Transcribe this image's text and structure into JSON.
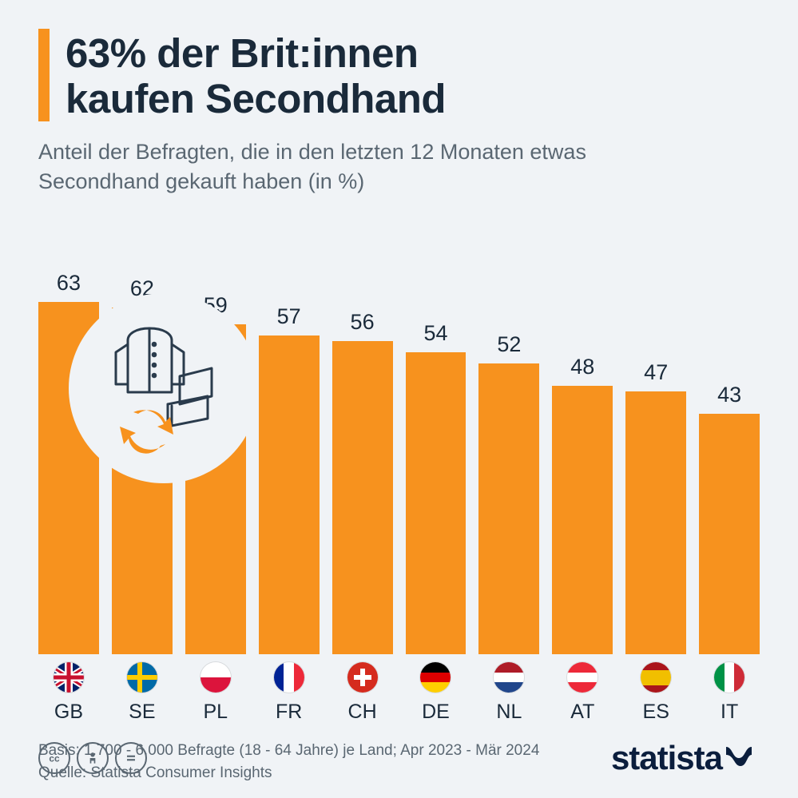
{
  "title_line1": "63% der Brit:innen",
  "title_line2": "kaufen Secondhand",
  "subtitle": "Anteil der Befragten, die in den letzten 12 Monaten etwas Secondhand gekauft haben (in %)",
  "chart": {
    "type": "bar",
    "max_value": 70,
    "bar_color": "#f7921e",
    "background_color": "#f0f3f6",
    "value_fontsize": 27,
    "label_fontsize": 25,
    "bars": [
      {
        "code": "GB",
        "value": 63,
        "flag": "gb"
      },
      {
        "code": "SE",
        "value": 62,
        "flag": "se"
      },
      {
        "code": "PL",
        "value": 59,
        "flag": "pl"
      },
      {
        "code": "FR",
        "value": 57,
        "flag": "fr"
      },
      {
        "code": "CH",
        "value": 56,
        "flag": "ch"
      },
      {
        "code": "DE",
        "value": 54,
        "flag": "de"
      },
      {
        "code": "NL",
        "value": 52,
        "flag": "nl"
      },
      {
        "code": "AT",
        "value": 48,
        "flag": "at"
      },
      {
        "code": "ES",
        "value": 47,
        "flag": "es"
      },
      {
        "code": "IT",
        "value": 43,
        "flag": "it"
      }
    ]
  },
  "footnote_basis": "Basis: 1.700 - 6.000 Befragte (18 - 64 Jahre) je Land; Apr 2023 - Mär 2024",
  "footnote_source": "Quelle: Statista Consumer Insights",
  "brand": "statista",
  "colors": {
    "accent": "#f7921e",
    "text_dark": "#1a2a3a",
    "text_muted": "#5a6772",
    "icon_line": "#2a3b4c"
  },
  "flag_colors": {
    "gb": {
      "bg": "#012169",
      "cross": "#ffffff",
      "red": "#c8102e"
    },
    "se": {
      "bg": "#006aa7",
      "cross": "#fecc00"
    },
    "pl": {
      "top": "#ffffff",
      "bottom": "#dc143c"
    },
    "fr": {
      "a": "#002395",
      "b": "#ffffff",
      "c": "#ed2939"
    },
    "ch": {
      "bg": "#d52b1e",
      "cross": "#ffffff"
    },
    "de": {
      "a": "#000000",
      "b": "#dd0000",
      "c": "#ffce00"
    },
    "nl": {
      "a": "#ae1c28",
      "b": "#ffffff",
      "c": "#21468b"
    },
    "at": {
      "a": "#ed2939",
      "b": "#ffffff",
      "c": "#ed2939"
    },
    "es": {
      "a": "#aa151b",
      "b": "#f1bf00",
      "c": "#aa151b"
    },
    "it": {
      "a": "#009246",
      "b": "#ffffff",
      "c": "#ce2b37"
    }
  }
}
